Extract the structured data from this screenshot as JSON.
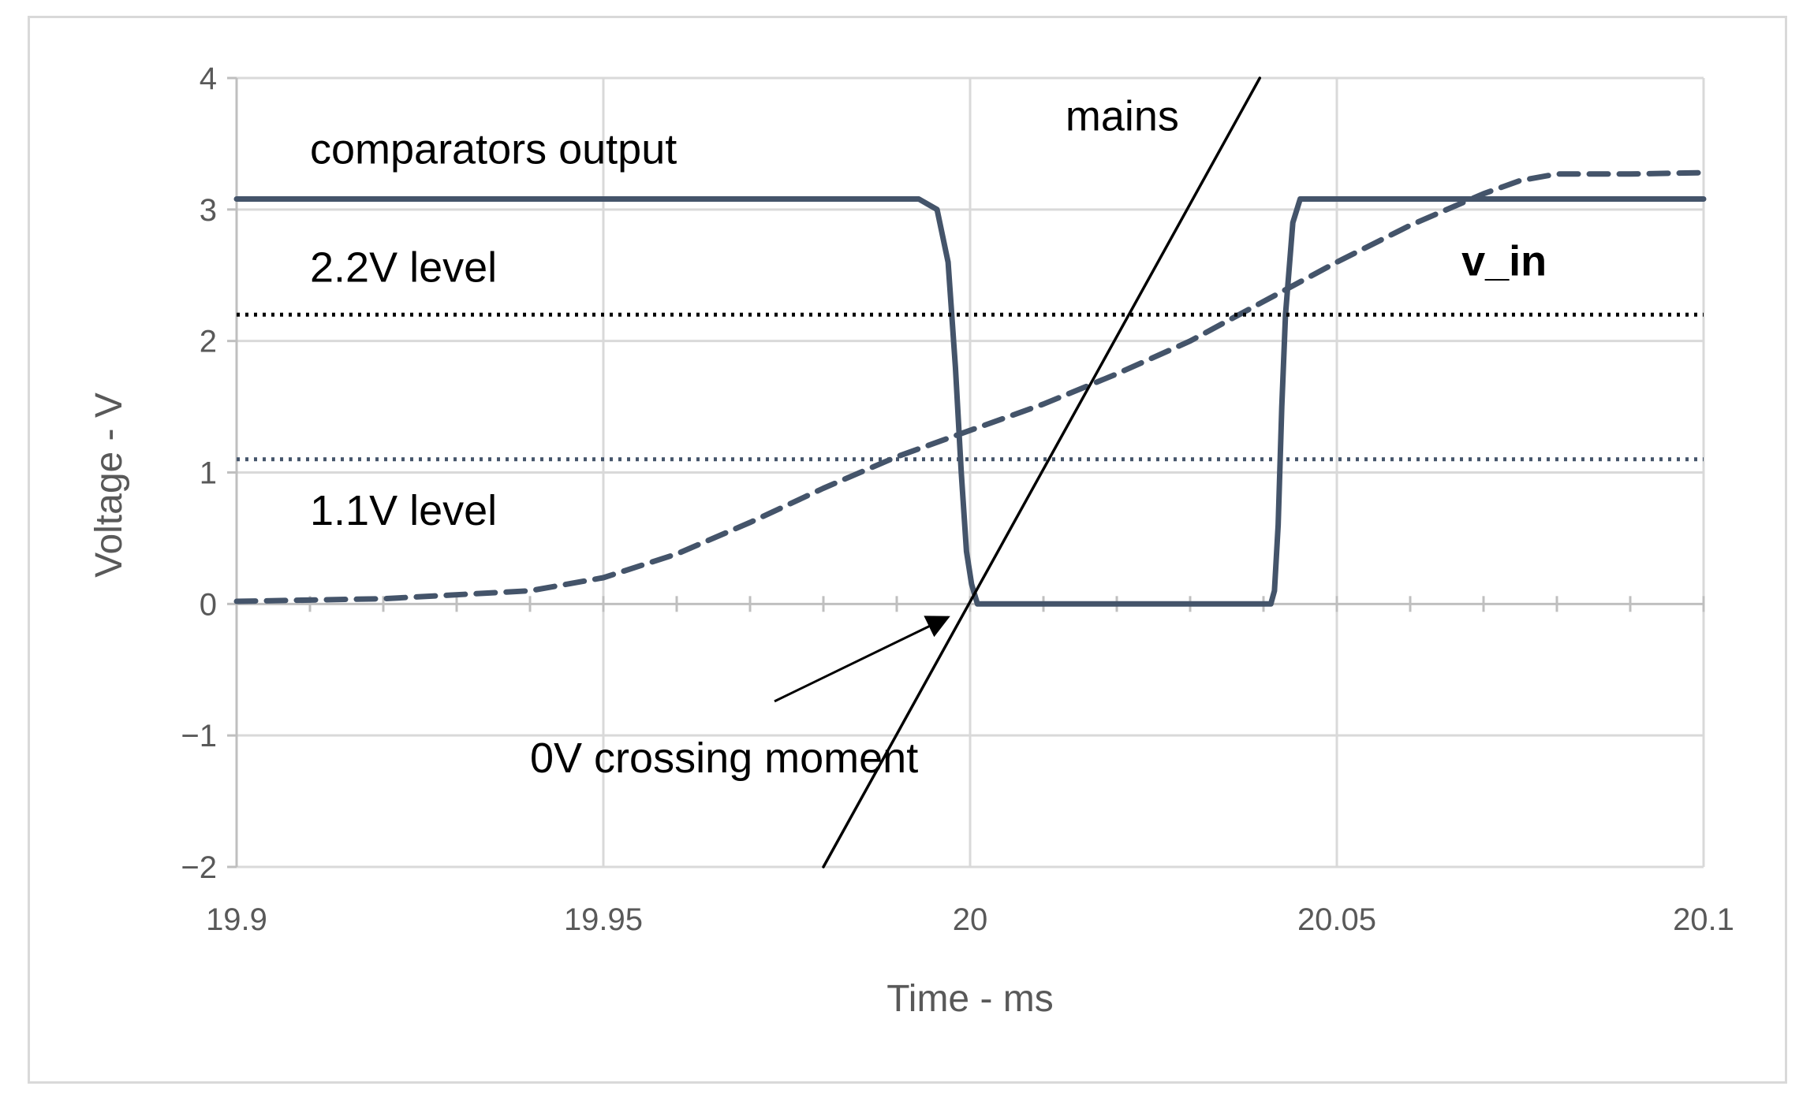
{
  "chart_data": {
    "type": "line",
    "title": "",
    "xlabel": "Time - ms",
    "ylabel": "Voltage - V",
    "xlim": [
      19.9,
      20.1
    ],
    "ylim": [
      -2,
      4
    ],
    "x_ticks": [
      19.9,
      19.95,
      20,
      20.05,
      20.1
    ],
    "x_tick_labels": [
      "19.9",
      "19.95",
      "20",
      "20.05",
      "20.1"
    ],
    "y_ticks": [
      -2,
      -1,
      0,
      1,
      2,
      3,
      4
    ],
    "y_tick_labels": [
      "−2",
      "−1",
      "0",
      "1",
      "2",
      "3",
      "4"
    ],
    "grid": true,
    "legend": "none",
    "series": [
      {
        "name": "comparators output",
        "style": "solid-thick",
        "color": "#44546a",
        "x": [
          19.9,
          19.993,
          19.9955,
          19.997,
          19.998,
          19.9988,
          19.9995,
          20.0002,
          20.001,
          20.003,
          20.041,
          20.0415,
          20.042,
          20.0425,
          20.043,
          20.044,
          20.045,
          20.1
        ],
        "y": [
          3.08,
          3.08,
          3.0,
          2.6,
          1.8,
          1.0,
          0.4,
          0.15,
          0.0,
          0.0,
          0.0,
          0.1,
          0.6,
          1.5,
          2.2,
          2.9,
          3.08,
          3.08
        ]
      },
      {
        "name": "v_in",
        "style": "dashed",
        "color": "#44546a",
        "x": [
          19.9,
          19.92,
          19.94,
          19.95,
          19.96,
          19.97,
          19.98,
          19.99,
          20.0,
          20.01,
          20.02,
          20.03,
          20.04,
          20.05,
          20.06,
          20.07,
          20.075,
          20.08,
          20.09,
          20.1
        ],
        "y": [
          0.02,
          0.04,
          0.1,
          0.2,
          0.38,
          0.62,
          0.88,
          1.12,
          1.32,
          1.52,
          1.75,
          2.0,
          2.3,
          2.6,
          2.88,
          3.12,
          3.22,
          3.27,
          3.27,
          3.28
        ]
      },
      {
        "name": "mains",
        "style": "solid-thin",
        "color": "#000000",
        "x": [
          19.98,
          20.0395
        ],
        "y": [
          -2,
          4
        ]
      },
      {
        "name": "2.2V level",
        "style": "dotted",
        "color": "#000000",
        "x": [
          19.9,
          20.1
        ],
        "y": [
          2.2,
          2.2
        ]
      },
      {
        "name": "1.1V level",
        "style": "dotted",
        "color": "#44546a",
        "x": [
          19.9,
          20.1
        ],
        "y": [
          1.1,
          1.1
        ]
      }
    ],
    "annotations": [
      {
        "text": "comparators output",
        "x": 19.91,
        "y": 3.35
      },
      {
        "text": "2.2V level",
        "x": 19.91,
        "y": 2.45
      },
      {
        "text": "1.1V level",
        "x": 19.91,
        "y": 0.6
      },
      {
        "text": "mains",
        "x": 20.013,
        "y": 3.6
      },
      {
        "text": "v_in",
        "x": 20.067,
        "y": 2.5,
        "bold": true
      },
      {
        "text": "0V crossing moment",
        "x": 19.94,
        "y": -1.28,
        "arrow_to": [
          19.997,
          -0.1
        ]
      }
    ]
  }
}
